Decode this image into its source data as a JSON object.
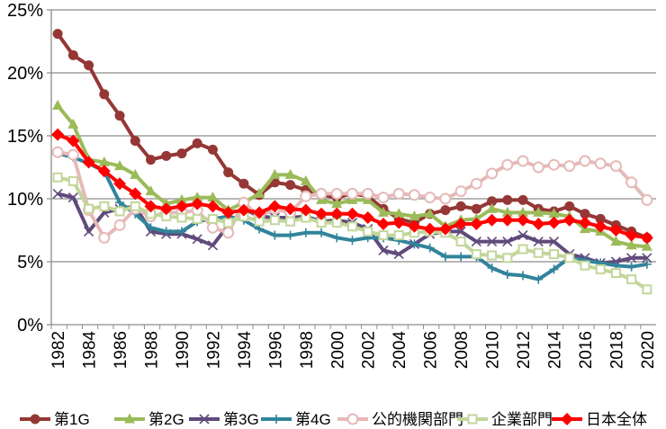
{
  "chart_data": {
    "type": "line",
    "title": "",
    "xlabel": "",
    "ylabel": "",
    "ylim": [
      0,
      25
    ],
    "yticks": [
      "0%",
      "5%",
      "10%",
      "15%",
      "20%",
      "25%"
    ],
    "grid": true,
    "legend_position": "bottom",
    "x": [
      1982,
      1983,
      1984,
      1985,
      1986,
      1987,
      1988,
      1989,
      1990,
      1991,
      1992,
      1993,
      1994,
      1995,
      1996,
      1997,
      1998,
      1999,
      2000,
      2001,
      2002,
      2003,
      2004,
      2005,
      2006,
      2007,
      2008,
      2009,
      2010,
      2011,
      2012,
      2013,
      2014,
      2015,
      2016,
      2017,
      2018,
      2019,
      2020
    ],
    "xtick_labels": [
      "1982",
      "1984",
      "1986",
      "1988",
      "1990",
      "1992",
      "1994",
      "1996",
      "1998",
      "2000",
      "2002",
      "2004",
      "2006",
      "2008",
      "2010",
      "2012",
      "2014",
      "2016",
      "2018",
      "2020"
    ],
    "series": [
      {
        "name": "第1G",
        "color": "#953735",
        "marker": "circle",
        "values": [
          23.1,
          21.4,
          20.6,
          18.3,
          16.6,
          14.6,
          13.1,
          13.4,
          13.6,
          14.4,
          13.9,
          12.1,
          11.2,
          10.3,
          11.3,
          11.1,
          10.7,
          10.3,
          10.1,
          10.4,
          10.2,
          9.2,
          8.4,
          8.1,
          8.8,
          9.1,
          9.4,
          9.2,
          9.8,
          9.9,
          9.9,
          9.2,
          9.0,
          9.4,
          8.8,
          8.4,
          7.9,
          7.4,
          6.9
        ]
      },
      {
        "name": "第2G",
        "color": "#9bbb59",
        "marker": "triangle",
        "values": [
          17.4,
          15.9,
          13.1,
          12.9,
          12.6,
          11.9,
          10.6,
          9.6,
          9.9,
          10.1,
          10.1,
          9.1,
          9.7,
          10.4,
          11.9,
          11.9,
          11.4,
          9.9,
          9.6,
          9.9,
          9.9,
          8.9,
          8.8,
          8.6,
          8.8,
          7.8,
          8.3,
          8.4,
          9.2,
          8.9,
          8.9,
          8.9,
          8.8,
          8.6,
          7.6,
          7.4,
          6.6,
          6.3,
          6.2
        ]
      },
      {
        "name": "第3G",
        "color": "#604a7b",
        "marker": "x",
        "values": [
          10.4,
          10.1,
          7.4,
          8.9,
          9.2,
          9.4,
          7.4,
          7.2,
          7.2,
          6.8,
          6.3,
          7.9,
          9.2,
          8.6,
          8.5,
          8.5,
          8.6,
          8.2,
          8.3,
          8.1,
          7.6,
          5.9,
          5.6,
          6.4,
          7.2,
          7.4,
          7.4,
          6.6,
          6.6,
          6.6,
          7.1,
          6.6,
          6.6,
          5.6,
          5.3,
          4.9,
          5.0,
          5.3,
          5.3
        ]
      },
      {
        "name": "第4G",
        "color": "#31849b",
        "marker": "plus",
        "values": [
          13.6,
          13.3,
          12.8,
          12.2,
          9.7,
          8.8,
          7.7,
          7.4,
          7.4,
          8.2,
          8.4,
          8.6,
          8.3,
          7.6,
          7.1,
          7.1,
          7.3,
          7.3,
          6.9,
          6.7,
          6.9,
          6.9,
          6.7,
          6.4,
          6.1,
          5.4,
          5.4,
          5.4,
          4.5,
          4.0,
          3.9,
          3.6,
          4.4,
          5.3,
          5.1,
          4.9,
          4.7,
          4.6,
          4.8
        ]
      },
      {
        "name": "公的機関部門",
        "color": "#e6b9b8",
        "marker": "open-circle",
        "values": [
          13.7,
          13.5,
          9.1,
          6.9,
          7.9,
          9.2,
          8.6,
          8.9,
          8.9,
          9.1,
          7.7,
          7.3,
          9.7,
          8.6,
          9.2,
          8.9,
          10.2,
          10.4,
          10.4,
          10.4,
          10.4,
          10.1,
          10.4,
          10.3,
          10.1,
          10.0,
          10.6,
          11.2,
          12.0,
          12.7,
          13.0,
          12.5,
          12.7,
          12.6,
          13.0,
          12.8,
          12.6,
          11.3,
          9.9
        ]
      },
      {
        "name": "企業部門",
        "color": "#c3d69b",
        "marker": "open-square",
        "values": [
          11.7,
          11.4,
          9.2,
          9.4,
          9.0,
          9.4,
          8.8,
          8.6,
          8.5,
          8.4,
          8.4,
          8.1,
          8.6,
          8.2,
          8.3,
          8.2,
          8.5,
          8.1,
          8.1,
          7.8,
          7.4,
          7.1,
          7.1,
          7.3,
          7.4,
          7.3,
          6.6,
          5.6,
          5.5,
          5.3,
          6.0,
          5.7,
          5.6,
          5.3,
          4.7,
          4.4,
          4.1,
          3.6,
          2.8
        ]
      },
      {
        "name": "日本全体",
        "color": "#ff0000",
        "marker": "diamond",
        "values": [
          15.1,
          14.6,
          12.9,
          12.2,
          11.2,
          10.4,
          9.4,
          9.2,
          9.4,
          9.6,
          9.4,
          8.9,
          9.1,
          8.9,
          9.4,
          9.2,
          9.1,
          8.8,
          8.8,
          8.8,
          8.5,
          8.0,
          8.1,
          7.8,
          7.6,
          7.6,
          8.0,
          8.0,
          8.3,
          8.3,
          8.3,
          8.0,
          8.1,
          8.3,
          8.1,
          7.8,
          7.5,
          7.1,
          6.9
        ]
      }
    ]
  }
}
